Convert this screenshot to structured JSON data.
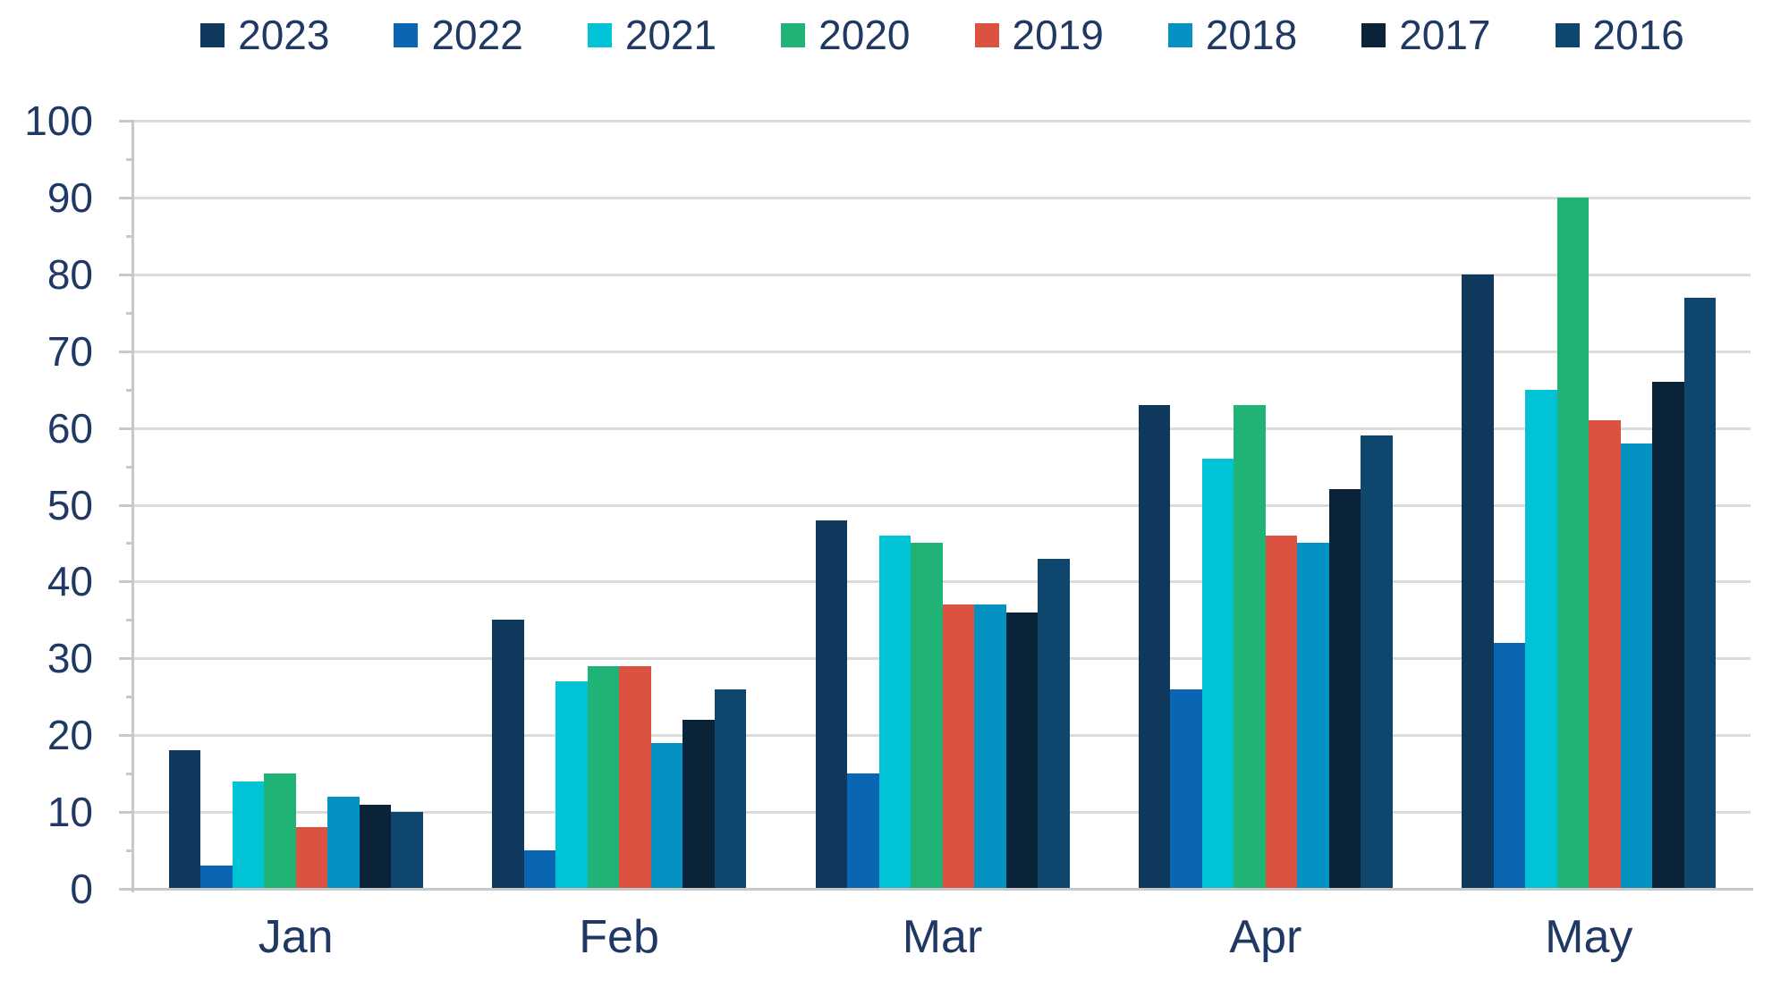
{
  "chart_data": {
    "type": "bar",
    "title": "",
    "categories": [
      "Jan",
      "Feb",
      "Mar",
      "Apr",
      "May"
    ],
    "series": [
      {
        "name": "2023",
        "color": "#0E395C",
        "values": [
          18,
          35,
          48,
          63,
          80
        ]
      },
      {
        "name": "2022",
        "color": "#0A65B2",
        "values": [
          3,
          5,
          15,
          26,
          32
        ]
      },
      {
        "name": "2021",
        "color": "#00C3D5",
        "values": [
          14,
          27,
          46,
          56,
          65
        ]
      },
      {
        "name": "2020",
        "color": "#1FB376",
        "values": [
          15,
          29,
          45,
          63,
          90
        ]
      },
      {
        "name": "2019",
        "color": "#DC5240",
        "values": [
          8,
          29,
          37,
          46,
          61
        ]
      },
      {
        "name": "2018",
        "color": "#0492C2",
        "values": [
          12,
          19,
          37,
          45,
          58
        ]
      },
      {
        "name": "2017",
        "color": "#0B2338",
        "values": [
          11,
          22,
          36,
          52,
          66
        ]
      },
      {
        "name": "2016",
        "color": "#0F466D",
        "values": [
          10,
          26,
          43,
          59,
          77
        ]
      }
    ],
    "xlabel": "",
    "ylabel": "",
    "ylim": [
      0,
      100
    ],
    "ytick_step": 10,
    "ytick_minor_step": 5,
    "ytick_labels": [
      "0",
      "10",
      "20",
      "30",
      "40",
      "50",
      "60",
      "70",
      "80",
      "90",
      "100"
    ],
    "grid": true,
    "legend_position": "top"
  },
  "styles": {
    "text_color": "#1F3864",
    "gridline_color": "#DBDBDB",
    "axis_color": "#C8C8C8",
    "background": "#FFFFFF"
  }
}
